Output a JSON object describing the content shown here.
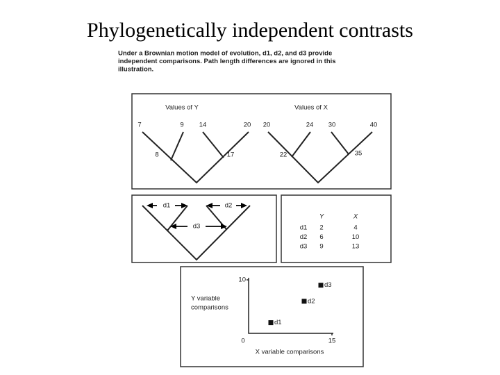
{
  "title": "Phylogenetically independent contrasts",
  "caption": [
    "Under a Brownian motion model of evolution, d1, d2, and d3 provide",
    "independent comparisons.  Path length differences are ignored in this",
    "illustration."
  ],
  "trees": [
    {
      "label": "Values of Y",
      "tips": [
        "7",
        "9",
        "14",
        "20"
      ],
      "nodes": [
        "8",
        "17"
      ]
    },
    {
      "label": "Values of X",
      "tips": [
        "20",
        "24",
        "30",
        "40"
      ],
      "nodes": [
        "22",
        "35"
      ]
    }
  ],
  "contrasts": [
    "d1",
    "d2",
    "d3"
  ],
  "table": {
    "header": [
      "Y",
      "X"
    ],
    "rows": [
      [
        "d1",
        2,
        4
      ],
      [
        "d2",
        6,
        10
      ],
      [
        "d3",
        9,
        13
      ]
    ]
  },
  "plot": {
    "y_axis_label": [
      "Y variable",
      "comparisons"
    ],
    "x_axis_label": "X variable  comparisons",
    "xlim": [
      0,
      15
    ],
    "ylim": [
      0,
      10
    ],
    "xticks": [
      0,
      15
    ],
    "yticks": [
      0,
      10
    ]
  }
}
